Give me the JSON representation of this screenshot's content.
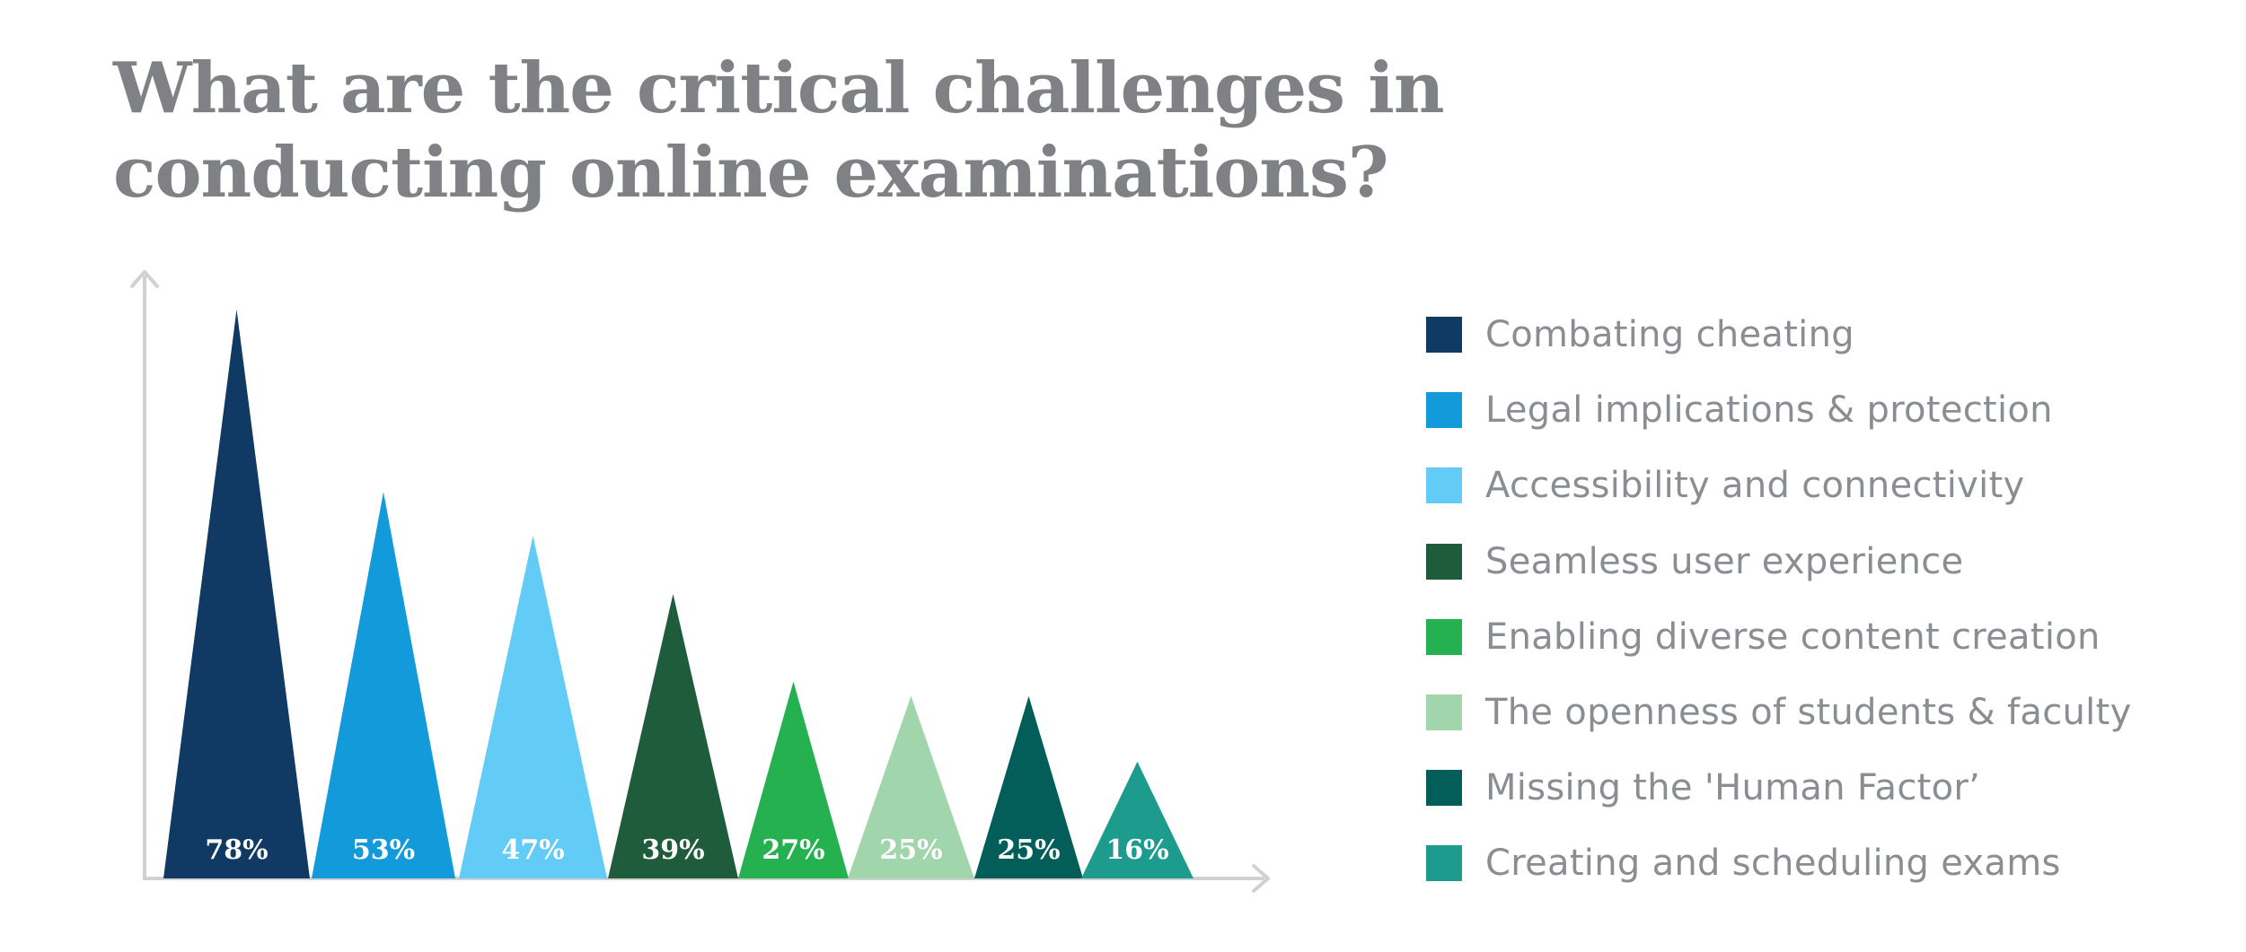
{
  "title_line1": "What are the critical challenges in",
  "title_line2": "conducting online examinations?",
  "chart_data": {
    "type": "bar",
    "shape": "triangle",
    "categories": [
      "Combating cheating",
      "Legal implications & protection",
      "Accessibility and connectivity",
      "Seamless user experience",
      "Enabling diverse content creation",
      "The openness of students & faculty",
      "Missing the 'Human Factor’",
      "Creating and scheduling exams"
    ],
    "values": [
      78,
      53,
      47,
      39,
      27,
      25,
      25,
      16
    ],
    "value_labels": [
      "78%",
      "53%",
      "47%",
      "39%",
      "27%",
      "25%",
      "25%",
      "16%"
    ],
    "colors": [
      "#103a63",
      "#139ada",
      "#62cbf6",
      "#1e5c3b",
      "#25b150",
      "#a1d6ad",
      "#035e59",
      "#1d9b8d"
    ],
    "xlabel": "",
    "ylabel": "",
    "grid": false,
    "legend_position": "right",
    "axis_color": "#d0d1d3"
  }
}
